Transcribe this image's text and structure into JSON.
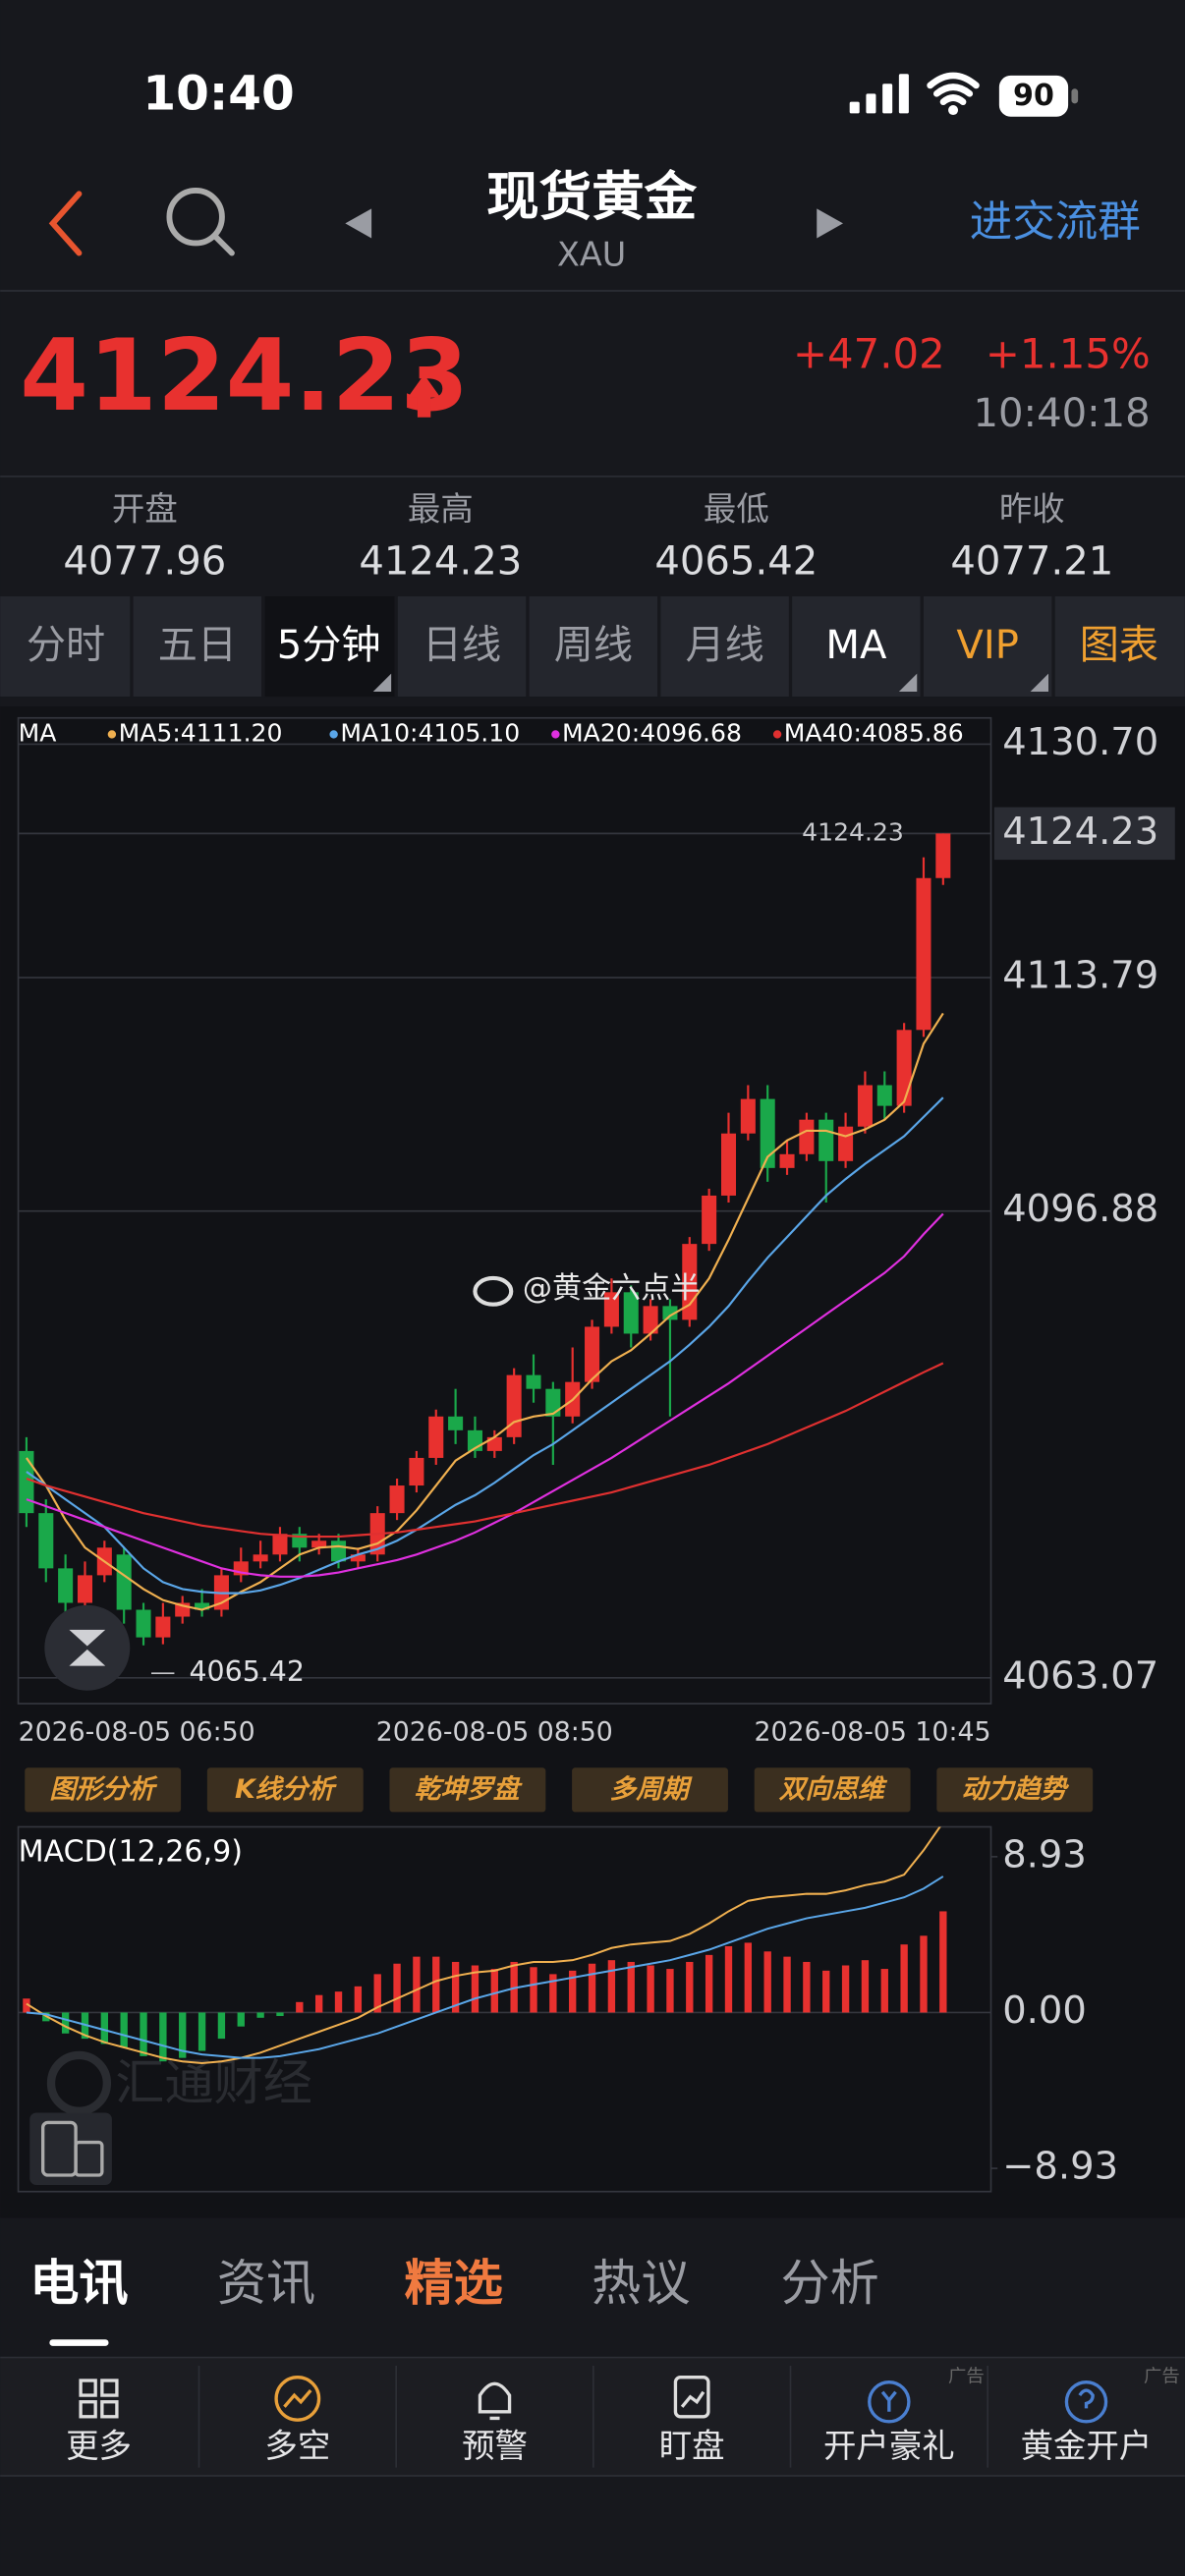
{
  "status_bar": {
    "time": "10:40",
    "battery": "90"
  },
  "header": {
    "title": "现货黄金",
    "symbol": "XAU",
    "group_link": "进交流群"
  },
  "quote": {
    "price": "4124.23",
    "change": "+47.02",
    "change_pct": "+1.15%",
    "time": "10:40:18"
  },
  "stats": [
    {
      "label": "开盘",
      "value": "4077.96"
    },
    {
      "label": "最高",
      "value": "4124.23"
    },
    {
      "label": "最低",
      "value": "4065.42"
    },
    {
      "label": "昨收",
      "value": "4077.21"
    }
  ],
  "period_tabs": [
    "分时",
    "五日",
    "5分钟",
    "日线",
    "周线",
    "月线",
    "MA",
    "VIP",
    "图表"
  ],
  "chart_data": [
    {
      "type": "candlestick",
      "legend_title": "MA",
      "categories": [
        "2026-08-05 06:50",
        null,
        null,
        null,
        null,
        null,
        null,
        null,
        null,
        null,
        null,
        null,
        null,
        null,
        null,
        null,
        null,
        null,
        null,
        null,
        null,
        null,
        null,
        null,
        "2026-08-05 08:50",
        null,
        null,
        null,
        null,
        null,
        null,
        null,
        null,
        null,
        null,
        null,
        null,
        null,
        null,
        null,
        null,
        null,
        null,
        null,
        null,
        null,
        null,
        "2026-08-05 10:45"
      ],
      "open": [
        4079.5,
        4075.0,
        4071.0,
        4068.5,
        4070.5,
        4072.0,
        4068.0,
        4066.0,
        4067.5,
        4068.5,
        4068.0,
        4070.5,
        4071.5,
        4072.0,
        4073.5,
        4072.5,
        4073.0,
        4071.5,
        4072.0,
        4075.0,
        4077.0,
        4079.0,
        4082.0,
        4081.0,
        4079.5,
        4080.5,
        4085.0,
        4084.0,
        4082.0,
        4084.5,
        4088.5,
        4091.0,
        4088.0,
        4090.0,
        4089.0,
        4094.5,
        4098.0,
        4102.5,
        4105.0,
        4100.0,
        4101.0,
        4103.5,
        4100.5,
        4103.0,
        4106.0,
        4104.5,
        4110.0,
        4121.0
      ],
      "close": [
        4075.0,
        4071.0,
        4068.5,
        4070.5,
        4072.5,
        4068.0,
        4066.0,
        4067.5,
        4068.5,
        4068.0,
        4070.5,
        4071.5,
        4072.0,
        4073.5,
        4072.5,
        4073.0,
        4071.5,
        4072.0,
        4075.0,
        4077.0,
        4079.0,
        4082.0,
        4081.0,
        4079.5,
        4080.5,
        4085.0,
        4084.0,
        4082.0,
        4084.5,
        4088.5,
        4091.0,
        4088.0,
        4090.0,
        4089.0,
        4094.5,
        4098.0,
        4102.5,
        4105.0,
        4100.0,
        4101.0,
        4103.5,
        4100.5,
        4103.0,
        4106.0,
        4104.5,
        4110.0,
        4121.0,
        4124.23
      ],
      "high": [
        4080.5,
        4076.0,
        4072.0,
        4071.5,
        4073.0,
        4072.5,
        4068.5,
        4068.5,
        4069.0,
        4069.5,
        4071.0,
        4072.5,
        4073.0,
        4074.0,
        4074.0,
        4073.5,
        4073.5,
        4072.5,
        4075.5,
        4077.5,
        4079.5,
        4082.5,
        4084.0,
        4082.0,
        4081.0,
        4085.5,
        4086.5,
        4084.5,
        4087.0,
        4089.0,
        4092.0,
        4091.5,
        4090.5,
        4090.5,
        4095.0,
        4098.5,
        4104.0,
        4106.0,
        4106.0,
        4102.0,
        4104.0,
        4104.0,
        4104.0,
        4107.0,
        4107.0,
        4110.5,
        4122.5,
        4124.23
      ],
      "low": [
        4074.0,
        4070.0,
        4067.5,
        4068.0,
        4070.0,
        4067.0,
        4065.42,
        4065.5,
        4067.0,
        4067.5,
        4067.5,
        4070.0,
        4071.0,
        4071.5,
        4071.5,
        4072.0,
        4071.0,
        4071.0,
        4071.5,
        4074.5,
        4076.5,
        4078.5,
        4080.0,
        4079.0,
        4079.0,
        4080.0,
        4083.0,
        4078.5,
        4081.5,
        4084.0,
        4088.0,
        4087.0,
        4087.5,
        4082.0,
        4088.5,
        4094.0,
        4097.5,
        4102.0,
        4099.0,
        4099.5,
        4100.5,
        4097.5,
        4100.0,
        4102.5,
        4103.5,
        4104.0,
        4109.5,
        4120.5
      ],
      "up_color": "#e8312f",
      "down_color": "#1aa84a",
      "series": [
        {
          "name": "MA5:4111.20",
          "color": "#f0b050",
          "values": [
            4079,
            4077,
            4074.5,
            4072.5,
            4071.5,
            4070.5,
            4069.5,
            4068.7,
            4068.3,
            4068,
            4068.5,
            4069.3,
            4070,
            4071,
            4072,
            4072.5,
            4072.6,
            4072.4,
            4072.8,
            4073.7,
            4075.2,
            4077,
            4078.8,
            4079.7,
            4080.5,
            4081.6,
            4082,
            4082.2,
            4083.2,
            4084.7,
            4086,
            4086.8,
            4088,
            4089.3,
            4090.1,
            4092,
            4094.8,
            4097.8,
            4100.8,
            4102,
            4102.7,
            4102.7,
            4102.3,
            4102.8,
            4103.5,
            4104.8,
            4109,
            4111.2
          ]
        },
        {
          "name": "MA10:4105.10",
          "color": "#5aa6e8",
          "values": [
            4078,
            4077,
            4076,
            4075,
            4074,
            4072.5,
            4071,
            4070,
            4069.5,
            4069.3,
            4069.2,
            4069.2,
            4069.4,
            4069.8,
            4070.3,
            4070.9,
            4071.5,
            4072,
            4072.4,
            4073,
            4073.8,
            4074.7,
            4075.6,
            4076.3,
            4077.2,
            4078.2,
            4079.2,
            4080,
            4081,
            4082,
            4083,
            4084,
            4085,
            4086,
            4087.2,
            4088.5,
            4090,
            4091.8,
            4093.5,
            4095,
            4096.5,
            4098,
            4099.2,
            4100.3,
            4101.3,
            4102.3,
            4103.7,
            4105.1
          ]
        },
        {
          "name": "MA20:4096.68",
          "color": "#e030e0",
          "values": [
            4076,
            4075.5,
            4075,
            4074.5,
            4074,
            4073.5,
            4073,
            4072.5,
            4072,
            4071.5,
            4071,
            4070.7,
            4070.5,
            4070.4,
            4070.4,
            4070.5,
            4070.7,
            4071,
            4071.3,
            4071.6,
            4072,
            4072.5,
            4073,
            4073.6,
            4074.3,
            4075,
            4075.8,
            4076.6,
            4077.4,
            4078.2,
            4079,
            4079.9,
            4080.8,
            4081.7,
            4082.6,
            4083.5,
            4084.4,
            4085.4,
            4086.4,
            4087.4,
            4088.4,
            4089.4,
            4090.4,
            4091.4,
            4092.4,
            4093.6,
            4095.2,
            4096.68
          ]
        },
        {
          "name": "MA40:4085.86",
          "color": "#e03030",
          "values": [
            4077.5,
            4077,
            4076.6,
            4076.2,
            4075.8,
            4075.4,
            4075,
            4074.7,
            4074.4,
            4074.1,
            4073.9,
            4073.7,
            4073.5,
            4073.4,
            4073.3,
            4073.3,
            4073.3,
            4073.4,
            4073.5,
            4073.6,
            4073.8,
            4074,
            4074.2,
            4074.4,
            4074.7,
            4075,
            4075.3,
            4075.6,
            4075.9,
            4076.2,
            4076.5,
            4076.9,
            4077.3,
            4077.7,
            4078.1,
            4078.5,
            4079,
            4079.5,
            4080,
            4080.6,
            4081.2,
            4081.8,
            4082.4,
            4083.1,
            4083.8,
            4084.5,
            4085.2,
            4085.86
          ]
        }
      ],
      "ylim": [
        4061.2,
        4132.6
      ],
      "yticks": [
        {
          "value": 4130.7,
          "label": "4130.70"
        },
        4124.23,
        4113.79,
        4096.88,
        4063.07
      ],
      "high_label": 4124.23,
      "low_label": 4065.42,
      "grid": true
    },
    {
      "type": "macd",
      "title": "MACD(12,26,9)",
      "values": [
        0.8,
        -0.5,
        -1.2,
        -1.5,
        -1.8,
        -2,
        -2.5,
        -2.8,
        -2.6,
        -2.2,
        -1.5,
        -0.8,
        -0.3,
        -0.2,
        0.6,
        1,
        1.2,
        1.5,
        2.2,
        2.8,
        3.2,
        3.2,
        2.9,
        2.7,
        2.5,
        2.9,
        2.6,
        2.2,
        2.4,
        2.8,
        3,
        2.9,
        2.7,
        2.5,
        2.9,
        3.3,
        3.8,
        4,
        3.5,
        3.2,
        2.9,
        2.4,
        2.7,
        3,
        2.5,
        3.9,
        4.4,
        5.8
      ],
      "up_color": "#e8312f",
      "down_color": "#1aa84a",
      "series": [
        {
          "color": "#f0b050",
          "values": [
            0.5,
            -0.2,
            -0.8,
            -1.3,
            -1.7,
            -2,
            -2.3,
            -2.6,
            -2.8,
            -2.9,
            -2.8,
            -2.6,
            -2.3,
            -1.9,
            -1.5,
            -1.1,
            -0.7,
            -0.3,
            0.3,
            0.8,
            1.3,
            1.8,
            2.1,
            2.3,
            2.4,
            2.7,
            2.9,
            2.9,
            3,
            3.3,
            3.7,
            3.9,
            4,
            4.1,
            4.5,
            5.1,
            5.8,
            6.4,
            6.6,
            6.7,
            6.8,
            6.8,
            7,
            7.3,
            7.5,
            7.9,
            9.3,
            10.9
          ]
        },
        {
          "color": "#5aa6e8",
          "values": [
            0,
            -0.1,
            -0.4,
            -0.7,
            -1,
            -1.3,
            -1.6,
            -1.9,
            -2.2,
            -2.4,
            -2.5,
            -2.6,
            -2.6,
            -2.5,
            -2.3,
            -2.1,
            -1.8,
            -1.5,
            -1.2,
            -0.8,
            -0.4,
            0,
            0.4,
            0.8,
            1.1,
            1.4,
            1.6,
            1.8,
            2,
            2.2,
            2.4,
            2.6,
            2.8,
            3,
            3.3,
            3.6,
            4,
            4.4,
            4.8,
            5.1,
            5.4,
            5.6,
            5.8,
            6,
            6.3,
            6.6,
            7.1,
            7.8
          ]
        }
      ],
      "ylim": [
        -10.26,
        10.64
      ],
      "yticks": [
        8.93,
        {
          "value": 0,
          "label": "0.00"
        },
        {
          "value": -8.93,
          "label": "−8.93"
        }
      ],
      "grid": true
    }
  ],
  "tool_buttons": [
    "图形分析",
    "K线分析",
    "乾坤罗盘",
    "多周期",
    "双向思维",
    "动力趋势"
  ],
  "watermarks": {
    "weibo": "@黄金六点半",
    "brand": "汇通财经"
  },
  "news_tabs": [
    "电讯",
    "资讯",
    "精选",
    "热议",
    "分析"
  ],
  "bottom_nav": {
    "items": [
      "更多",
      "多空",
      "预警",
      "盯盘",
      "开户豪礼",
      "黄金开户"
    ],
    "ad_label": "广告"
  }
}
